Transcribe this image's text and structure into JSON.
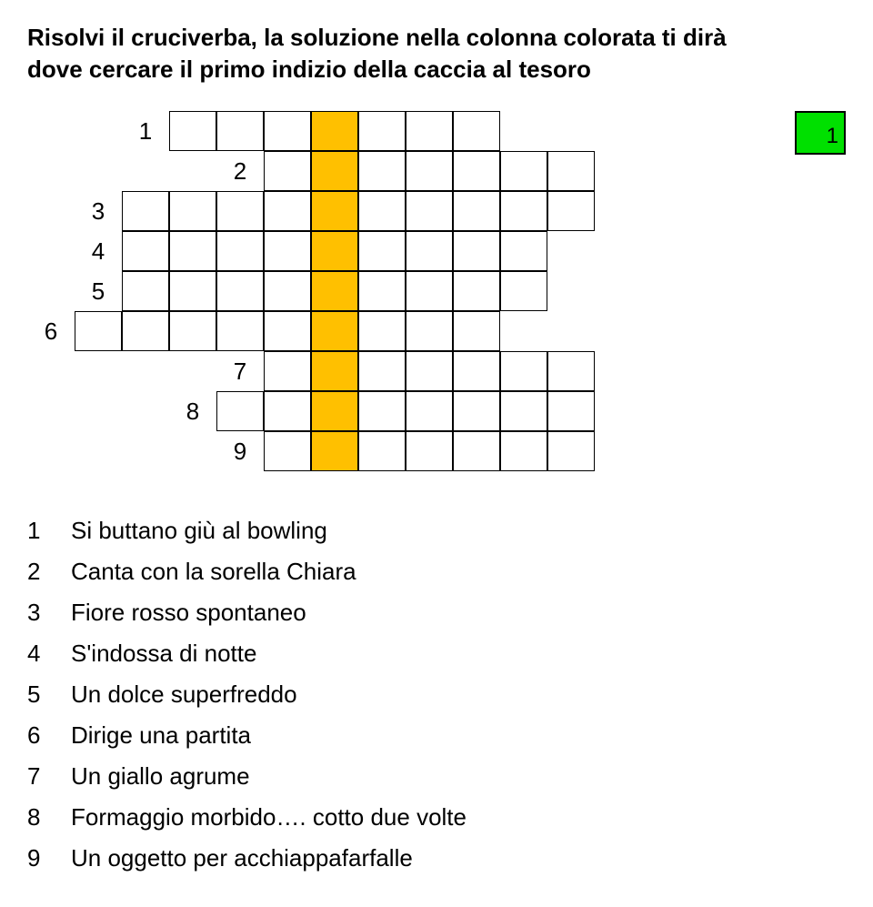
{
  "intro_line1": "Risolvi il cruciverba, la soluzione nella colonna colorata ti dirà",
  "intro_line2": "dove cercare il primo indizio della caccia al tesoro",
  "corner_label": "1",
  "grid": {
    "cols": 12,
    "cell_size_w": 52,
    "cell_size_h": 44,
    "hl_col": 6,
    "colors": {
      "highlight": "#ffc000",
      "cell_bg": "#ffffff",
      "border": "#000000",
      "corner_bg": "#00e000"
    },
    "rows": [
      {
        "num": "1",
        "num_col": 2,
        "start": 3,
        "end": 9
      },
      {
        "num": "2",
        "num_col": 4,
        "start": 5,
        "end": 11
      },
      {
        "num": "3",
        "num_col": 1,
        "start": 2,
        "end": 11
      },
      {
        "num": "4",
        "num_col": 1,
        "start": 2,
        "end": 10
      },
      {
        "num": "5",
        "num_col": 1,
        "start": 2,
        "end": 10
      },
      {
        "num": "6",
        "num_col": 0,
        "start": 1,
        "end": 9
      },
      {
        "num": "7",
        "num_col": 4,
        "start": 5,
        "end": 11
      },
      {
        "num": "8",
        "num_col": 3,
        "start": 4,
        "end": 11
      },
      {
        "num": "9",
        "num_col": 4,
        "start": 5,
        "end": 11
      }
    ]
  },
  "clues": [
    {
      "n": "1",
      "text": "Si buttano giù al bowling"
    },
    {
      "n": "2",
      "text": "Canta con la sorella Chiara"
    },
    {
      "n": "3",
      "text": "Fiore rosso spontaneo"
    },
    {
      "n": "4",
      "text": "S'indossa di notte"
    },
    {
      "n": "5",
      "text": "Un dolce superfreddo"
    },
    {
      "n": "6",
      "text": "Dirige una partita"
    },
    {
      "n": "7",
      "text": "Un giallo agrume"
    },
    {
      "n": "8",
      "text": "Formaggio morbido…. cotto due volte"
    },
    {
      "n": "9",
      "text": "Un oggetto per acchiappafarfalle"
    }
  ]
}
